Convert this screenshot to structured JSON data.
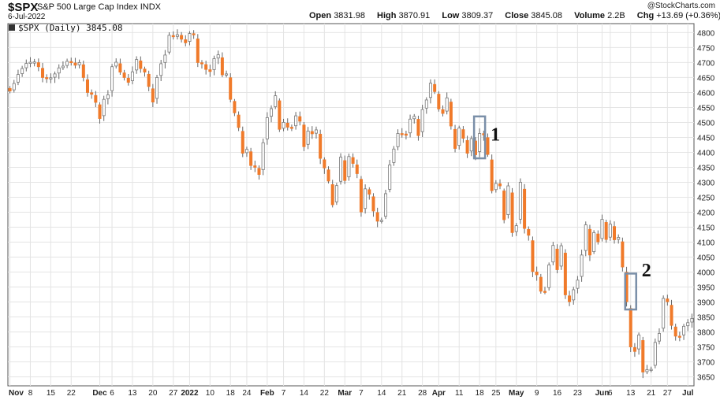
{
  "header": {
    "symbol": "$SPX",
    "name": "S&P 500 Large Cap Index",
    "exchange": "INDX",
    "date": "6-Jul-2022",
    "copyright": "@StockCharts.com",
    "open_label": "Open",
    "open": "3831.98",
    "high_label": "High",
    "high": "3870.91",
    "low_label": "Low",
    "low": "3809.37",
    "close_label": "Close",
    "close": "3845.08",
    "volume_label": "Volume",
    "volume": "2.2B",
    "chg_label": "Chg",
    "chg": "+13.69 (+0.36%)"
  },
  "legend": "$SPX (Daily) 3845.08",
  "annotations": [
    "1",
    "2"
  ],
  "colors": {
    "down": "#f07a2a",
    "up": "#ffffff",
    "wick": "#666666",
    "box": "#7a8fa8",
    "grid": "#e4e4e4"
  },
  "chart_data": {
    "type": "candlestick",
    "ylim": [
      3620,
      4830
    ],
    "yticks": [
      3650,
      3700,
      3750,
      3800,
      3850,
      3900,
      3950,
      4000,
      4050,
      4100,
      4150,
      4200,
      4250,
      4300,
      4350,
      4400,
      4450,
      4500,
      4550,
      4600,
      4650,
      4700,
      4750,
      4800
    ],
    "xticks": [
      {
        "label": "Nov",
        "i": 0
      },
      {
        "label": "8",
        "i": 5
      },
      {
        "label": "15",
        "i": 10
      },
      {
        "label": "22",
        "i": 15
      },
      {
        "label": "Dec",
        "i": 22
      },
      {
        "label": "6",
        "i": 25
      },
      {
        "label": "13",
        "i": 30
      },
      {
        "label": "20",
        "i": 35
      },
      {
        "label": "27",
        "i": 40
      },
      {
        "label": "2022",
        "i": 44
      },
      {
        "label": "10",
        "i": 49
      },
      {
        "label": "18",
        "i": 54
      },
      {
        "label": "24",
        "i": 58
      },
      {
        "label": "Feb",
        "i": 63
      },
      {
        "label": "7",
        "i": 67
      },
      {
        "label": "14",
        "i": 72
      },
      {
        "label": "22",
        "i": 77
      },
      {
        "label": "Mar",
        "i": 82
      },
      {
        "label": "7",
        "i": 86
      },
      {
        "label": "14",
        "i": 91
      },
      {
        "label": "21",
        "i": 96
      },
      {
        "label": "28",
        "i": 101
      },
      {
        "label": "Apr",
        "i": 105
      },
      {
        "label": "11",
        "i": 110
      },
      {
        "label": "18",
        "i": 115
      },
      {
        "label": "25",
        "i": 119
      },
      {
        "label": "May",
        "i": 124
      },
      {
        "label": "9",
        "i": 129
      },
      {
        "label": "16",
        "i": 134
      },
      {
        "label": "23",
        "i": 139
      },
      {
        "label": "Jun",
        "i": 145
      },
      {
        "label": "6",
        "i": 147
      },
      {
        "label": "13",
        "i": 152
      },
      {
        "label": "21",
        "i": 157
      },
      {
        "label": "27",
        "i": 161
      },
      {
        "label": "Jul",
        "i": 166
      }
    ],
    "closes": [
      4605,
      4630,
      4660,
      4680,
      4697,
      4701,
      4702,
      4686,
      4650,
      4649,
      4649,
      4662,
      4682,
      4688,
      4704,
      4700,
      4691,
      4700,
      4650,
      4600,
      4594,
      4567,
      4513,
      4577,
      4592,
      4686,
      4701,
      4668,
      4650,
      4634,
      4669,
      4710,
      4680,
      4668,
      4620,
      4568,
      4650,
      4696,
      4725,
      4791,
      4786,
      4793,
      4778,
      4766,
      4797,
      4793,
      4700,
      4696,
      4677,
      4670,
      4713,
      4726,
      4659,
      4662,
      4577,
      4532,
      4483,
      4397,
      4410,
      4356,
      4350,
      4326,
      4432,
      4516,
      4546,
      4589,
      4477,
      4500,
      4484,
      4483,
      4522,
      4504,
      4419,
      4471,
      4462,
      4475,
      4380,
      4348,
      4304,
      4225,
      4289,
      4384,
      4306,
      4386,
      4363,
      4329,
      4201,
      4278,
      4260,
      4204,
      4170,
      4173,
      4262,
      4358,
      4411,
      4463,
      4462,
      4457,
      4511,
      4520,
      4456,
      4543,
      4575,
      4631,
      4603,
      4545,
      4530,
      4582,
      4488,
      4413,
      4481,
      4447,
      4397,
      4446,
      4392,
      4463,
      4459,
      4393,
      4272,
      4296,
      4288,
      4175,
      4288,
      4132,
      4155,
      4300,
      4146,
      4123,
      4002,
      3991,
      3936,
      3935,
      4024,
      4089,
      4008,
      4088,
      3924,
      3901,
      3941,
      3973,
      4057,
      4158,
      4057,
      4132,
      4101,
      4176,
      4109,
      4160,
      4108,
      4116,
      4017,
      3901,
      3750,
      3735,
      3790,
      3666,
      3674,
      3675,
      3765,
      3795,
      3912,
      3901,
      3822,
      3786,
      3785,
      3819,
      3831,
      3845
    ]
  }
}
